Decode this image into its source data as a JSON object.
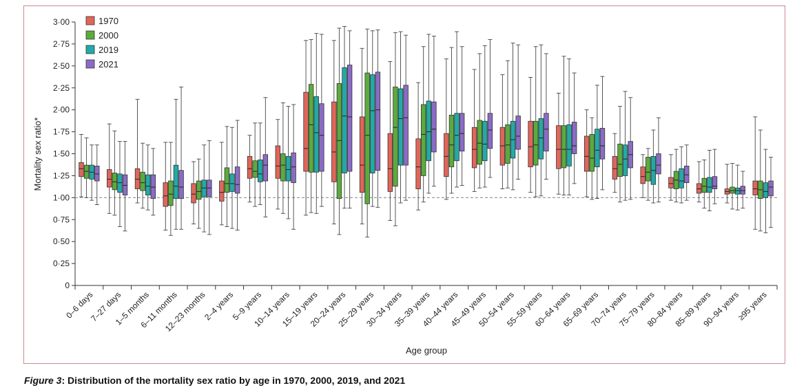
{
  "caption": {
    "label": "Figure 3",
    "text": ": Distribution of the mortality sex ratio by age in 1970, 2000, 2019, and 2021"
  },
  "colors": {
    "1970": "#e0665a",
    "2000": "#5aac3c",
    "2019": "#22aaa8",
    "2021": "#8a6cc4",
    "frame": "#c98a93",
    "reference_line": "#8a8f99"
  },
  "chart_data": {
    "type": "boxplot",
    "title": "",
    "xlabel": "Age group",
    "ylabel": "Mortality sex ratio*",
    "ylim": [
      0,
      3.0
    ],
    "yticks": [
      "0",
      "0·25",
      "0·50",
      "0·75",
      "1·00",
      "1·25",
      "1·50",
      "1·75",
      "2·00",
      "2·25",
      "2·50",
      "2·75",
      "3·00"
    ],
    "reference_line": 1.0,
    "legend_position": "top-left",
    "series_names": [
      "1970",
      "2000",
      "2019",
      "2021"
    ],
    "categories": [
      "0–6 days",
      "7–27 days",
      "1–5 months",
      "6–11 months",
      "12–23 months",
      "2–4 years",
      "5–9 years",
      "10–14 years",
      "15–19 years",
      "20–24 years",
      "25–29 years",
      "30–34 years",
      "35–39 years",
      "40–44 years",
      "45–49 years",
      "50–54 years",
      "55–59 years",
      "60–64 years",
      "65–69 years",
      "70–74 years",
      "75–79 years",
      "80–84 years",
      "85–89 years",
      "90–94 years",
      "≥95 years"
    ],
    "series": [
      {
        "name": "1970",
        "boxes": [
          [
            1.01,
            1.24,
            1.33,
            1.4,
            1.72
          ],
          [
            0.82,
            1.12,
            1.21,
            1.32,
            1.84
          ],
          [
            0.94,
            1.1,
            1.21,
            1.33,
            2.12
          ],
          [
            0.63,
            0.9,
            1.02,
            1.17,
            1.63
          ],
          [
            0.7,
            0.94,
            1.04,
            1.16,
            1.41
          ],
          [
            0.69,
            0.96,
            1.06,
            1.19,
            1.63
          ],
          [
            0.95,
            1.22,
            1.33,
            1.47,
            1.71
          ],
          [
            0.87,
            1.22,
            1.36,
            1.59,
            1.89
          ],
          [
            0.8,
            1.3,
            1.56,
            2.2,
            2.79
          ],
          [
            0.7,
            1.18,
            1.52,
            2.09,
            2.79
          ],
          [
            0.7,
            1.06,
            1.37,
            1.92,
            2.7
          ],
          [
            0.74,
            1.07,
            1.33,
            1.73,
            2.55
          ],
          [
            0.86,
            1.1,
            1.35,
            1.67,
            2.31
          ],
          [
            0.98,
            1.24,
            1.47,
            1.73,
            2.58
          ],
          [
            1.07,
            1.34,
            1.55,
            1.8,
            2.46
          ],
          [
            1.1,
            1.37,
            1.59,
            1.8,
            2.4
          ],
          [
            1.06,
            1.35,
            1.58,
            1.87,
            2.37
          ],
          [
            1.04,
            1.33,
            1.55,
            1.82,
            2.19
          ],
          [
            1.01,
            1.3,
            1.47,
            1.7,
            2.0
          ],
          [
            1.06,
            1.21,
            1.33,
            1.47,
            1.73
          ],
          [
            1.0,
            1.16,
            1.24,
            1.35,
            1.49
          ],
          [
            0.97,
            1.11,
            1.16,
            1.23,
            1.49
          ],
          [
            0.95,
            1.05,
            1.1,
            1.16,
            1.41
          ],
          [
            0.94,
            1.04,
            1.07,
            1.1,
            1.38
          ],
          [
            0.64,
            1.03,
            1.1,
            1.19,
            1.92
          ]
        ]
      },
      {
        "name": "2000",
        "boxes": [
          [
            1.0,
            1.22,
            1.3,
            1.37,
            1.68
          ],
          [
            0.8,
            1.09,
            1.18,
            1.28,
            1.76
          ],
          [
            0.88,
            1.08,
            1.17,
            1.29,
            1.62
          ],
          [
            0.57,
            0.91,
            1.04,
            1.19,
            1.63
          ],
          [
            0.65,
            0.98,
            1.07,
            1.19,
            1.44
          ],
          [
            0.67,
            1.06,
            1.16,
            1.34,
            1.81
          ],
          [
            0.9,
            1.23,
            1.3,
            1.42,
            1.85
          ],
          [
            0.82,
            1.19,
            1.37,
            1.5,
            2.08
          ],
          [
            0.83,
            1.29,
            1.83,
            2.29,
            2.8
          ],
          [
            0.58,
            0.99,
            1.65,
            2.3,
            2.93
          ],
          [
            0.55,
            0.93,
            1.71,
            2.42,
            2.92
          ],
          [
            0.68,
            1.13,
            1.8,
            2.26,
            2.88
          ],
          [
            0.95,
            1.25,
            1.72,
            2.06,
            2.72
          ],
          [
            1.05,
            1.35,
            1.6,
            1.94,
            2.71
          ],
          [
            1.11,
            1.38,
            1.62,
            1.88,
            2.64
          ],
          [
            1.11,
            1.39,
            1.6,
            1.83,
            2.56
          ],
          [
            1.01,
            1.37,
            1.6,
            1.87,
            2.72
          ],
          [
            1.03,
            1.34,
            1.55,
            1.82,
            2.61
          ],
          [
            0.98,
            1.3,
            1.45,
            1.72,
            1.91
          ],
          [
            0.95,
            1.24,
            1.38,
            1.61,
            2.04
          ],
          [
            0.97,
            1.19,
            1.29,
            1.46,
            1.56
          ],
          [
            0.95,
            1.1,
            1.2,
            1.3,
            1.55
          ],
          [
            0.88,
            1.06,
            1.13,
            1.22,
            1.43
          ],
          [
            0.87,
            1.05,
            1.08,
            1.12,
            1.39
          ],
          [
            0.62,
            0.99,
            1.09,
            1.19,
            1.77
          ]
        ]
      },
      {
        "name": "2019",
        "boxes": [
          [
            0.97,
            1.21,
            1.29,
            1.37,
            1.6
          ],
          [
            0.67,
            1.06,
            1.17,
            1.27,
            1.64
          ],
          [
            0.86,
            1.03,
            1.13,
            1.26,
            1.6
          ],
          [
            0.64,
            0.99,
            1.13,
            1.37,
            2.12
          ],
          [
            0.61,
            1.01,
            1.11,
            1.2,
            1.6
          ],
          [
            0.65,
            1.07,
            1.16,
            1.27,
            1.8
          ],
          [
            0.92,
            1.18,
            1.27,
            1.43,
            1.85
          ],
          [
            0.76,
            1.19,
            1.32,
            1.47,
            2.04
          ],
          [
            0.82,
            1.29,
            1.74,
            2.15,
            2.87
          ],
          [
            0.88,
            1.28,
            1.93,
            2.48,
            2.95
          ],
          [
            0.9,
            1.28,
            1.99,
            2.4,
            2.9
          ],
          [
            0.94,
            1.37,
            1.9,
            2.24,
            2.89
          ],
          [
            1.05,
            1.42,
            1.75,
            2.1,
            2.86
          ],
          [
            1.12,
            1.42,
            1.71,
            1.96,
            2.89
          ],
          [
            1.12,
            1.42,
            1.61,
            1.87,
            2.73
          ],
          [
            1.09,
            1.45,
            1.66,
            1.87,
            2.76
          ],
          [
            1.02,
            1.44,
            1.68,
            1.9,
            2.74
          ],
          [
            1.03,
            1.36,
            1.55,
            1.83,
            2.58
          ],
          [
            0.99,
            1.35,
            1.54,
            1.78,
            2.28
          ],
          [
            0.97,
            1.25,
            1.44,
            1.6,
            2.21
          ],
          [
            0.94,
            1.15,
            1.31,
            1.47,
            1.77
          ],
          [
            0.94,
            1.11,
            1.19,
            1.33,
            1.58
          ],
          [
            0.85,
            1.06,
            1.12,
            1.23,
            1.54
          ],
          [
            0.86,
            1.04,
            1.08,
            1.11,
            1.37
          ],
          [
            0.6,
            1.0,
            1.07,
            1.17,
            1.55
          ]
        ]
      },
      {
        "name": "2021",
        "boxes": [
          [
            0.92,
            1.19,
            1.27,
            1.36,
            1.6
          ],
          [
            0.62,
            1.03,
            1.14,
            1.26,
            1.64
          ],
          [
            0.8,
            0.99,
            1.12,
            1.26,
            1.56
          ],
          [
            0.64,
            0.99,
            1.12,
            1.31,
            2.26
          ],
          [
            0.58,
            1.01,
            1.11,
            1.2,
            1.65
          ],
          [
            0.63,
            1.05,
            1.15,
            1.35,
            1.88
          ],
          [
            0.78,
            1.19,
            1.37,
            1.49,
            2.14
          ],
          [
            0.64,
            1.17,
            1.35,
            1.51,
            2.06
          ],
          [
            0.9,
            1.3,
            1.71,
            2.07,
            2.86
          ],
          [
            0.88,
            1.3,
            1.92,
            2.51,
            2.9
          ],
          [
            0.89,
            1.31,
            2.0,
            2.43,
            2.91
          ],
          [
            0.97,
            1.37,
            1.91,
            2.28,
            2.85
          ],
          [
            1.13,
            1.52,
            1.78,
            2.09,
            2.84
          ],
          [
            1.14,
            1.53,
            1.73,
            1.96,
            2.72
          ],
          [
            1.23,
            1.56,
            1.77,
            1.96,
            2.8
          ],
          [
            1.21,
            1.55,
            1.7,
            1.93,
            2.74
          ],
          [
            1.21,
            1.53,
            1.78,
            1.96,
            2.64
          ],
          [
            1.16,
            1.5,
            1.59,
            1.86,
            2.42
          ],
          [
            1.09,
            1.44,
            1.59,
            1.79,
            2.38
          ],
          [
            0.98,
            1.34,
            1.49,
            1.64,
            2.14
          ],
          [
            0.95,
            1.27,
            1.37,
            1.5,
            1.91
          ],
          [
            0.97,
            1.17,
            1.26,
            1.36,
            1.6
          ],
          [
            0.93,
            1.1,
            1.13,
            1.24,
            1.55
          ],
          [
            0.88,
            1.04,
            1.08,
            1.13,
            1.3
          ],
          [
            0.66,
            1.02,
            1.12,
            1.19,
            1.46
          ]
        ]
      }
    ]
  }
}
